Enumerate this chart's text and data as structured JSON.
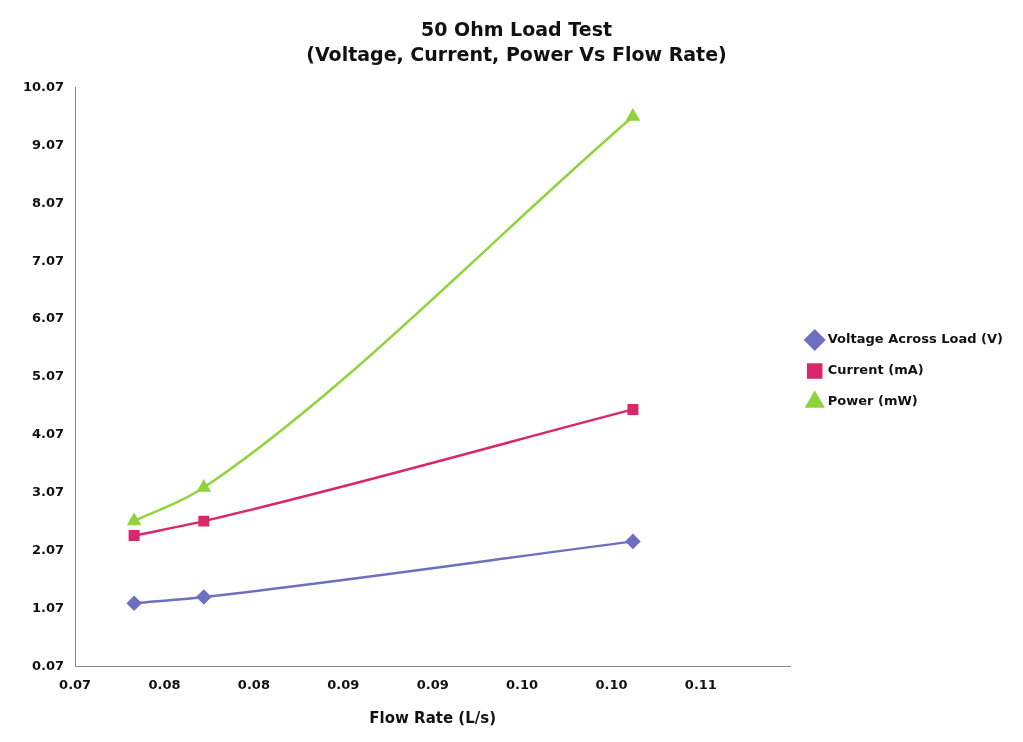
{
  "chart_data": {
    "type": "line",
    "title": "50 Ohm Load Test",
    "subtitle": "(Voltage, Current, Power Vs Flow Rate)",
    "xlabel": "Flow Rate (L/s)",
    "x": [
      0.0733,
      0.0772,
      0.1012
    ],
    "series": [
      {
        "name": "Voltage Across Load (V)",
        "color": "#6f6fbf",
        "marker": "diamond",
        "values": [
          1.16,
          1.27,
          2.23
        ]
      },
      {
        "name": "Current (mA)",
        "color": "#d6286a",
        "marker": "square",
        "values": [
          2.33,
          2.58,
          4.51
        ]
      },
      {
        "name": "Power (mW)",
        "color": "#8fd43a",
        "marker": "triangle",
        "values": [
          2.58,
          3.16,
          9.57
        ]
      }
    ],
    "xlim": [
      0.07,
      0.11
    ],
    "xticks": [
      0.07,
      {
        "value": 0.075,
        "label": "0.08"
      },
      0.08,
      {
        "value": 0.085,
        "label": "0.09"
      },
      0.09,
      {
        "value": 0.095,
        "label": "0.10"
      },
      {
        "value": 0.1,
        "label": "0.10"
      },
      {
        "value": 0.105,
        "label": "0.11"
      }
    ],
    "ylim": [
      0.07,
      10.07
    ],
    "yticks": [
      0.07,
      1.07,
      2.07,
      3.07,
      4.07,
      5.07,
      6.07,
      7.07,
      8.07,
      9.07,
      10.07
    ],
    "grid": false,
    "legend": "right"
  }
}
